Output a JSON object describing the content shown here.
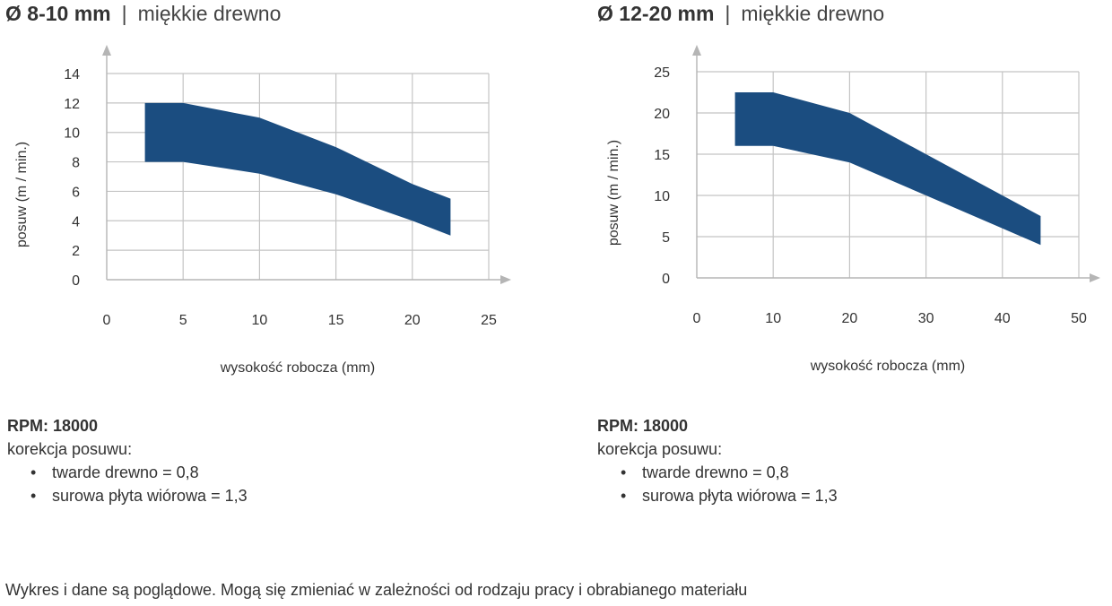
{
  "charts": [
    {
      "title_diameter": "Ø 8-10 mm",
      "title_separator": "|",
      "title_material": "miękkie drewno",
      "rpm_label": "RPM: 18000",
      "correction_label": "korekcja posuwu:",
      "corrections": [
        "twarde drewno = 0,8",
        "surowa płyta wiórowa = 1,3"
      ]
    },
    {
      "title_diameter": "Ø 12-20 mm",
      "title_separator": "|",
      "title_material": "miękkie drewno",
      "rpm_label": "RPM: 18000",
      "correction_label": "korekcja posuwu:",
      "corrections": [
        "twarde drewno = 0,8",
        "surowa płyta wiórowa = 1,3"
      ]
    }
  ],
  "footnote": "Wykres i dane są poglądowe. Mogą się zmieniać w zależności od rodzaju pracy i obrabianego materiału",
  "colors": {
    "band": "#1b4d80",
    "grid": "#c4c4c4",
    "axis": "#b5b5b5",
    "text": "#333333"
  },
  "chart_data": [
    {
      "type": "area",
      "xlabel": "wysokość robocza (mm)",
      "ylabel": "posuw (m / min.)",
      "xlim": [
        0,
        25
      ],
      "ylim": [
        0,
        14
      ],
      "x_ticks": [
        0,
        5,
        10,
        15,
        20,
        25
      ],
      "y_ticks": [
        0,
        2,
        4,
        6,
        8,
        10,
        12,
        14
      ],
      "grid": true,
      "series": [
        {
          "x": [
            2.5,
            5,
            10,
            15,
            20,
            22.5
          ],
          "upper": [
            12,
            12,
            11,
            9,
            6.5,
            5.5
          ],
          "lower": [
            8,
            8,
            7.2,
            5.8,
            4,
            3
          ]
        }
      ]
    },
    {
      "type": "area",
      "xlabel": "wysokość robocza (mm)",
      "ylabel": "posuw (m / min.)",
      "xlim": [
        0,
        50
      ],
      "ylim": [
        0,
        25
      ],
      "x_ticks": [
        0,
        10,
        20,
        30,
        40,
        50
      ],
      "y_ticks": [
        0,
        5,
        10,
        15,
        20,
        25
      ],
      "grid": true,
      "series": [
        {
          "x": [
            5,
            10,
            20,
            30,
            40,
            45
          ],
          "upper": [
            22.5,
            22.5,
            20,
            15,
            10,
            7.5
          ],
          "lower": [
            16,
            16,
            14,
            10,
            6,
            4
          ]
        }
      ]
    }
  ]
}
